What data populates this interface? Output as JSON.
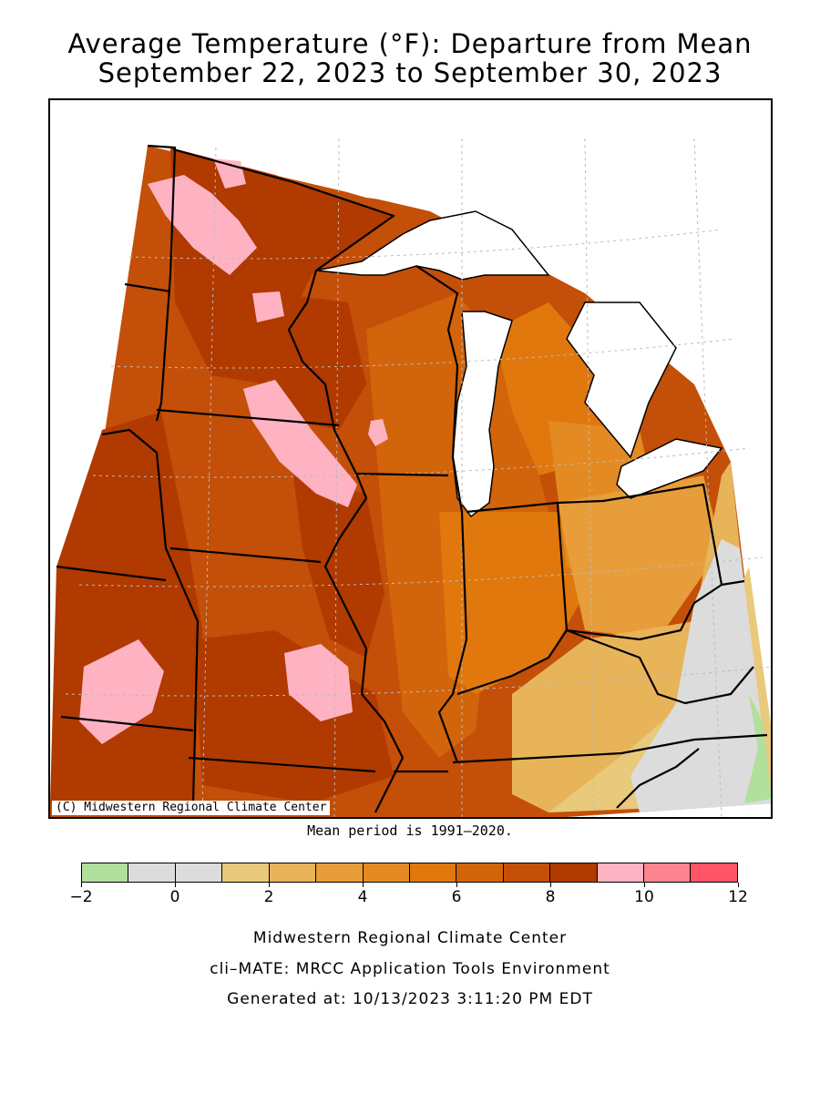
{
  "title_line1": "Average Temperature (°F): Departure from Mean",
  "title_line2": "September 22, 2023 to September 30, 2023",
  "map": {
    "copyright": "(C) Midwestern Regional Climate Center",
    "region": "Upper Midwest / Great Lakes",
    "colors": {
      "water": "#ffffff",
      "cat_9_10": "#ffb3c2",
      "cat_8_9": "#b03a00",
      "cat_7_8": "#c44f08",
      "cat_6_7": "#d2640b",
      "cat_5_6": "#e0780d",
      "cat_4_5": "#e38b22",
      "cat_3_4": "#e69d3a",
      "cat_2_3": "#e8b45a",
      "cat_1_2": "#e9c97c",
      "cat_0_1": "#dcdcdc",
      "cat_m1_0": "#dcdcdc",
      "cat_m2_m1": "#b0e09c"
    }
  },
  "mean_note": "Mean period is 1991–2020.",
  "legend": {
    "colors": [
      "#b0e09c",
      "#dcdcdc",
      "#dcdcdc",
      "#e9c97c",
      "#e8b45a",
      "#e69d3a",
      "#e38b22",
      "#e0780d",
      "#d2640b",
      "#c44f08",
      "#b03a00",
      "#ffb3c2",
      "#ff8490",
      "#ff5566"
    ],
    "ticks": [
      "−2",
      "0",
      "2",
      "4",
      "6",
      "8",
      "10",
      "12"
    ]
  },
  "footer": {
    "line1": "Midwestern Regional Climate Center",
    "line2": "cli–MATE: MRCC Application Tools Environment",
    "line3": "Generated at: 10/13/2023 3:11:20 PM EDT"
  }
}
